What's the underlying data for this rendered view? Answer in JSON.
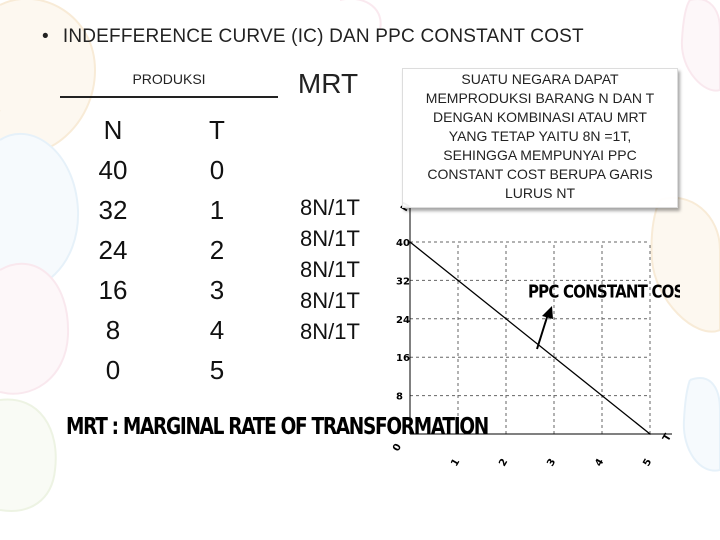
{
  "title": "INDEFFERENCE CURVE (IC) DAN PPC CONSTANT COST",
  "bullet": "•",
  "table": {
    "produksi_header": "PRODUKSI",
    "mrt_header": "MRT",
    "n_header": "N",
    "t_header": "T",
    "n_values": [
      "40",
      "32",
      "24",
      "16",
      "8",
      "0"
    ],
    "t_values": [
      "0",
      "1",
      "2",
      "3",
      "4",
      "5"
    ],
    "mrt_values": [
      "8N/1T",
      "8N/1T",
      "8N/1T",
      "8N/1T",
      "8N/1T"
    ]
  },
  "description": [
    "SUATU NEGARA DAPAT",
    "MEMPRODUKSI BARANG N DAN T",
    "DENGAN KOMBINASI ATAU MRT",
    "YANG TETAP YAITU 8N =1T,",
    "SEHINGGA MEMPUNYAI PPC",
    "CONSTANT COST BERUPA GARIS",
    "LURUS NT"
  ],
  "footer": "MRT : MARGINAL RATE OF TRANSFORMATION",
  "chart_data": {
    "type": "line",
    "title": "",
    "curve_label": "PPC CONSTANT COST",
    "xlabel": "T",
    "ylabel": "N",
    "origin_label": "0",
    "x_ticks": [
      "1",
      "2",
      "3",
      "4",
      "5"
    ],
    "y_ticks": [
      "8",
      "16",
      "24",
      "32",
      "40"
    ],
    "xlim": [
      0,
      5
    ],
    "ylim": [
      0,
      40
    ],
    "grid": true,
    "series": [
      {
        "x": [
          0,
          1,
          2,
          3,
          4,
          5
        ],
        "y": [
          40,
          32,
          24,
          16,
          8,
          0
        ]
      }
    ]
  }
}
